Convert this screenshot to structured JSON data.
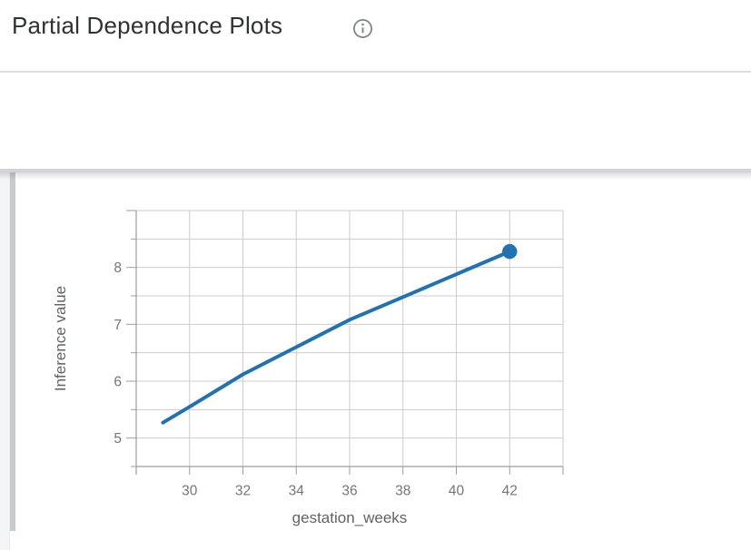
{
  "header": {
    "title": "Partial Dependence Plots"
  },
  "feature_section": {
    "name": "gestation_weeks",
    "expanded": true
  },
  "chart_data": {
    "type": "line",
    "title": "",
    "xlabel": "gestation_weeks",
    "ylabel": "Inference value",
    "x": [
      29,
      30,
      32,
      34,
      36,
      38,
      40,
      42
    ],
    "y": [
      5.27,
      5.55,
      6.12,
      6.6,
      7.08,
      7.48,
      7.88,
      8.28
    ],
    "xlim": [
      28,
      44
    ],
    "ylim": [
      4.5,
      9
    ],
    "x_tick_step": 2,
    "y_tick_step": 0.5,
    "x_tick_labels": [
      30,
      32,
      34,
      36,
      38,
      40,
      42
    ],
    "y_tick_labels": [
      5,
      6,
      7,
      8
    ],
    "grid": true,
    "legend": "none",
    "endpoint_marker": {
      "x": 42,
      "y": 8.28
    },
    "colors": {
      "line": "#2271b3",
      "grid": "#cccccc",
      "axis": "#9e9e9e",
      "tick_label": "#757575",
      "axis_title": "#5f6368"
    }
  }
}
